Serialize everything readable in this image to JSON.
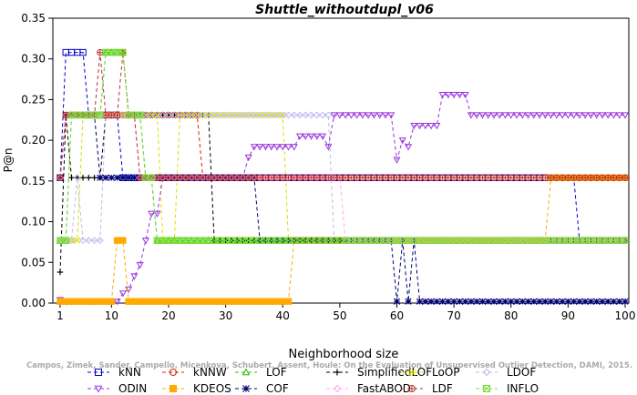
{
  "chart_data": {
    "type": "line",
    "title": "Shuttle_withoutdupl_v06",
    "xlabel": "Neighborhood size",
    "ylabel": "P@n",
    "xlim": [
      1,
      100
    ],
    "ylim": [
      0,
      0.35
    ],
    "x_ticks": [
      "1",
      "10",
      "20",
      "30",
      "40",
      "50",
      "60",
      "70",
      "80",
      "90",
      "100"
    ],
    "y_ticks": [
      "0.00",
      "0.05",
      "0.10",
      "0.15",
      "0.20",
      "0.25",
      "0.30",
      "0.35"
    ],
    "grid": false,
    "legend_position": "bottom",
    "watermark": "Campos, Zimek, Sander, Campello, Micenkova, Schubert, Assent, Houle: On the Evaluation of Unsupervised Outlier Detection, DAMI, 2015.",
    "series": [
      {
        "name": "kNN",
        "color": "#0000cc",
        "marker": "square",
        "points": [
          [
            1,
            0.154
          ],
          [
            2,
            0.308
          ],
          [
            5,
            0.308
          ],
          [
            6,
            0.231
          ],
          [
            11,
            0.231
          ],
          [
            12,
            0.154
          ],
          [
            91,
            0.154
          ],
          [
            92,
            0.077
          ],
          [
            100,
            0.077
          ]
        ]
      },
      {
        "name": "kNNW",
        "color": "#dd2200",
        "marker": "circle",
        "points": [
          [
            1,
            0.154
          ],
          [
            2,
            0.231
          ],
          [
            25,
            0.231
          ],
          [
            26,
            0.154
          ],
          [
            100,
            0.154
          ]
        ]
      },
      {
        "name": "LOF",
        "color": "#22bb00",
        "marker": "triangle-up",
        "points": [
          [
            1,
            0.077
          ],
          [
            2,
            0.077
          ],
          [
            3,
            0.231
          ],
          [
            8,
            0.231
          ],
          [
            9,
            0.308
          ],
          [
            12,
            0.308
          ],
          [
            13,
            0.231
          ],
          [
            15,
            0.231
          ],
          [
            16,
            0.154
          ],
          [
            17,
            0.154
          ],
          [
            18,
            0.077
          ],
          [
            100,
            0.077
          ]
        ]
      },
      {
        "name": "SimplifiedLOF",
        "color": "#000000",
        "marker": "plus",
        "points": [
          [
            1,
            0.038
          ],
          [
            2,
            0.231
          ],
          [
            3,
            0.154
          ],
          [
            8,
            0.154
          ],
          [
            9,
            0.231
          ],
          [
            27,
            0.231
          ],
          [
            28,
            0.077
          ],
          [
            100,
            0.077
          ]
        ]
      },
      {
        "name": "LoOP",
        "color": "#dddd00",
        "marker": "x",
        "points": [
          [
            1,
            0.077
          ],
          [
            4,
            0.077
          ],
          [
            5,
            0.231
          ],
          [
            18,
            0.231
          ],
          [
            19,
            0.077
          ],
          [
            21,
            0.077
          ],
          [
            22,
            0.231
          ],
          [
            40,
            0.231
          ],
          [
            41,
            0.077
          ],
          [
            100,
            0.077
          ]
        ]
      },
      {
        "name": "LDOF",
        "color": "#bbbbee",
        "marker": "diamond",
        "points": [
          [
            1,
            0.077
          ],
          [
            3,
            0.077
          ],
          [
            4,
            0.154
          ],
          [
            5,
            0.077
          ],
          [
            8,
            0.077
          ],
          [
            9,
            0.231
          ],
          [
            48,
            0.231
          ],
          [
            49,
            0.077
          ],
          [
            100,
            0.077
          ]
        ]
      },
      {
        "name": "ODIN",
        "color": "#9933dd",
        "marker": "triangle-down",
        "points": [
          [
            1,
            0.004
          ],
          [
            2,
            0.002
          ],
          [
            11,
            0.002
          ],
          [
            12,
            0.012
          ],
          [
            13,
            0.017
          ],
          [
            14,
            0.033
          ],
          [
            15,
            0.047
          ],
          [
            16,
            0.077
          ],
          [
            17,
            0.11
          ],
          [
            18,
            0.11
          ],
          [
            19,
            0.154
          ],
          [
            20,
            0.154
          ],
          [
            33,
            0.154
          ],
          [
            34,
            0.179
          ],
          [
            35,
            0.192
          ],
          [
            42,
            0.192
          ],
          [
            43,
            0.205
          ],
          [
            47,
            0.205
          ],
          [
            48,
            0.192
          ],
          [
            49,
            0.231
          ],
          [
            59,
            0.231
          ],
          [
            60,
            0.176
          ],
          [
            61,
            0.2
          ],
          [
            62,
            0.192
          ],
          [
            63,
            0.218
          ],
          [
            67,
            0.218
          ],
          [
            68,
            0.256
          ],
          [
            72,
            0.256
          ],
          [
            73,
            0.231
          ],
          [
            100,
            0.231
          ]
        ]
      },
      {
        "name": "KDEOS",
        "color": "#ffaa00",
        "marker": "square-filled",
        "points": [
          [
            1,
            0.002
          ],
          [
            10,
            0.002
          ],
          [
            11,
            0.077
          ],
          [
            12,
            0.077
          ],
          [
            13,
            0.002
          ],
          [
            41,
            0.002
          ],
          [
            42,
            0.077
          ],
          [
            86,
            0.077
          ],
          [
            87,
            0.154
          ],
          [
            100,
            0.154
          ]
        ]
      },
      {
        "name": "COF",
        "color": "#000077",
        "marker": "star",
        "points": [
          [
            1,
            0.154
          ],
          [
            2,
            0.231
          ],
          [
            7,
            0.231
          ],
          [
            8,
            0.154
          ],
          [
            9,
            0.154
          ],
          [
            10,
            0.154
          ],
          [
            11,
            0.154
          ],
          [
            12,
            0.154
          ],
          [
            35,
            0.154
          ],
          [
            36,
            0.077
          ],
          [
            59,
            0.077
          ],
          [
            60,
            0.002
          ],
          [
            61,
            0.077
          ],
          [
            62,
            0.002
          ],
          [
            63,
            0.077
          ],
          [
            64,
            0.002
          ],
          [
            100,
            0.002
          ]
        ]
      },
      {
        "name": "FastABOD",
        "color": "#ffaaee",
        "marker": "diamond",
        "points": [
          [
            1,
            0.154
          ],
          [
            2,
            0.231
          ],
          [
            14,
            0.231
          ],
          [
            15,
            0.154
          ],
          [
            50,
            0.154
          ],
          [
            51,
            0.077
          ],
          [
            100,
            0.077
          ]
        ]
      },
      {
        "name": "LDF",
        "color": "#bb3333",
        "marker": "circle-plus",
        "points": [
          [
            1,
            0.154
          ],
          [
            2,
            0.231
          ],
          [
            7,
            0.231
          ],
          [
            8,
            0.308
          ],
          [
            9,
            0.231
          ],
          [
            11,
            0.231
          ],
          [
            12,
            0.308
          ],
          [
            13,
            0.231
          ],
          [
            14,
            0.231
          ],
          [
            15,
            0.154
          ],
          [
            100,
            0.154
          ]
        ]
      },
      {
        "name": "INFLO",
        "color": "#77dd33",
        "marker": "hourglass",
        "points": [
          [
            1,
            0.077
          ],
          [
            2,
            0.077
          ],
          [
            3,
            0.231
          ],
          [
            8,
            0.231
          ],
          [
            9,
            0.308
          ],
          [
            12,
            0.308
          ],
          [
            13,
            0.231
          ],
          [
            15,
            0.231
          ],
          [
            16,
            0.154
          ],
          [
            17,
            0.154
          ],
          [
            18,
            0.077
          ],
          [
            100,
            0.077
          ]
        ]
      }
    ]
  }
}
